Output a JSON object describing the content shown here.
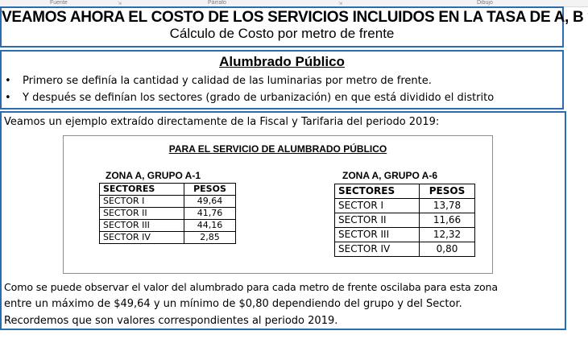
{
  "ribbon": {
    "groups": [
      "Fuente",
      "Párrafo",
      "Dibujo"
    ]
  },
  "title_box": {
    "main": "VEAMOS AHORA EL COSTO DE LOS SERVICIOS INCLUIDOS  EN LA TASA DE A, B y L.",
    "subtitle": "Cálculo de Costo por metro de frente"
  },
  "alumbrado_box": {
    "heading": "Alumbrado Público",
    "bullet_symbol": "•",
    "bullets": [
      "Primero se definía la cantidad y calidad de las luminarias por metro de frente.",
      "Y después se definían los sectores (grado de urbanización) en que está dividido el distrito"
    ]
  },
  "example_box": {
    "intro": "Veamos un ejemplo extraído directamente de la Fiscal y Tarifaria del periodo 2019:",
    "panel": {
      "title": "PARA EL SERVICIO DE ALUMBRADO PÚBLICO",
      "zones": [
        {
          "title": "ZONA A, GRUPO A-1",
          "headers": [
            "SECTORES",
            "PESOS"
          ],
          "rows": [
            [
              "SECTOR I",
              "49,64"
            ],
            [
              "SECTOR II",
              "41,76"
            ],
            [
              "SECTOR III",
              "44,16"
            ],
            [
              "SECTOR IV",
              "2,85"
            ]
          ]
        },
        {
          "title": "ZONA A, GRUPO A-6",
          "headers": [
            "SECTORES",
            "PESOS"
          ],
          "rows": [
            [
              "SECTOR I",
              "13,78"
            ],
            [
              "SECTOR II",
              "11,66"
            ],
            [
              "SECTOR III",
              "12,32"
            ],
            [
              "SECTOR IV",
              "0,80"
            ]
          ]
        }
      ]
    },
    "conclusion": [
      "Como se puede observar el valor del alumbrado para cada metro de frente oscilaba para esta zona",
      "entre un máximo de $49,64 y un mínimo de $0,80 dependiendo del grupo y del Sector.",
      "Recordemos que son valores correspondientes al periodo 2019."
    ]
  }
}
